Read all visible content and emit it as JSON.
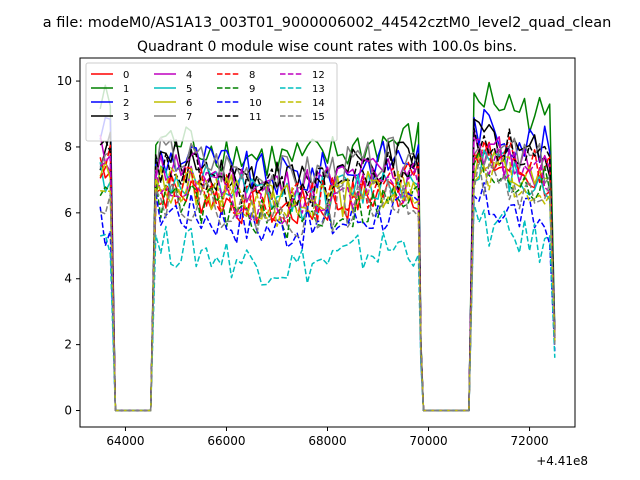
{
  "figure": {
    "suptitle": "a file: modeM0/AS1A13_003T01_9000006002_44542cztM0_level2_quad_clean",
    "offset_label": "+4.41e8"
  },
  "chart_data": {
    "type": "line",
    "title": "Quadrant 0 module wise count rates with 100.0s bins.",
    "xlabel": "",
    "ylabel": "",
    "x_offset": 441000000,
    "xlim": [
      63100,
      72900
    ],
    "ylim": [
      -0.5,
      10.7
    ],
    "xticks": [
      64000,
      66000,
      68000,
      70000,
      72000
    ],
    "xtick_labels": [
      "64000",
      "66000",
      "68000",
      "70000",
      "72000"
    ],
    "yticks": [
      0,
      2,
      4,
      6,
      8,
      10
    ],
    "ytick_labels": [
      "0",
      "2",
      "4",
      "6",
      "8",
      "10"
    ],
    "grid": false,
    "legend": {
      "placement": "top-left",
      "columns": 4
    },
    "segments": [
      {
        "start": 63500,
        "end": 63700
      },
      {
        "start": 64600,
        "end": 69800
      },
      {
        "start": 70900,
        "end": 72500
      }
    ],
    "gaps": [
      {
        "start": 63800,
        "end": 64500,
        "value": 0
      },
      {
        "start": 69900,
        "end": 70800,
        "value": 0
      }
    ],
    "series": [
      {
        "name": "0",
        "color": "#ff0000",
        "dash": "solid",
        "seg_means": [
          7.6,
          6.4,
          7.3
        ],
        "ends": [
          1.9,
          2.2
        ]
      },
      {
        "name": "1",
        "color": "#008000",
        "dash": "solid",
        "seg_means": [
          9.3,
          7.9,
          9.2
        ],
        "ends": [
          2.1,
          2.4
        ]
      },
      {
        "name": "2",
        "color": "#0000ff",
        "dash": "solid",
        "seg_means": [
          8.6,
          7.4,
          8.3
        ],
        "ends": [
          2.0,
          2.3
        ]
      },
      {
        "name": "3",
        "color": "#000000",
        "dash": "solid",
        "seg_means": [
          7.9,
          7.3,
          8.1
        ],
        "ends": [
          2.0,
          2.3
        ]
      },
      {
        "name": "4",
        "color": "#bf00bf",
        "dash": "solid",
        "seg_means": [
          7.8,
          7.1,
          7.6
        ],
        "ends": [
          1.9,
          2.2
        ]
      },
      {
        "name": "5",
        "color": "#00bfbf",
        "dash": "solid",
        "seg_means": [
          7.2,
          6.7,
          7.2
        ],
        "ends": [
          1.8,
          2.1
        ]
      },
      {
        "name": "6",
        "color": "#bfbf00",
        "dash": "solid",
        "seg_means": [
          7.0,
          6.6,
          7.1
        ],
        "ends": [
          1.8,
          2.1
        ]
      },
      {
        "name": "7",
        "color": "#808080",
        "dash": "solid",
        "seg_means": [
          7.5,
          7.4,
          7.7
        ],
        "ends": [
          1.9,
          2.2
        ]
      },
      {
        "name": "8",
        "color": "#ff0000",
        "dash": "dashed",
        "seg_means": [
          7.4,
          6.6,
          7.6
        ],
        "ends": [
          1.8,
          2.1
        ]
      },
      {
        "name": "9",
        "color": "#008000",
        "dash": "dashed",
        "seg_means": [
          7.1,
          6.1,
          7.1
        ],
        "ends": [
          1.8,
          2.1
        ]
      },
      {
        "name": "10",
        "color": "#0000ff",
        "dash": "dashed",
        "seg_means": [
          5.6,
          5.8,
          6.0
        ],
        "ends": [
          1.5,
          1.8
        ]
      },
      {
        "name": "11",
        "color": "#000000",
        "dash": "dashed",
        "seg_means": [
          7.7,
          7.0,
          7.9
        ],
        "ends": [
          1.9,
          2.2
        ]
      },
      {
        "name": "12",
        "color": "#bf00bf",
        "dash": "dashed",
        "seg_means": [
          7.3,
          6.6,
          7.4
        ],
        "ends": [
          1.8,
          2.1
        ]
      },
      {
        "name": "13",
        "color": "#00bfbf",
        "dash": "dashed",
        "seg_means": [
          5.4,
          4.7,
          5.3
        ],
        "ends": [
          1.4,
          1.6
        ]
      },
      {
        "name": "14",
        "color": "#bfbf00",
        "dash": "dashed",
        "seg_means": [
          7.0,
          6.5,
          7.1
        ],
        "ends": [
          1.8,
          2.1
        ]
      },
      {
        "name": "15",
        "color": "#808080",
        "dash": "dashed",
        "seg_means": [
          6.6,
          6.2,
          6.7
        ],
        "ends": [
          1.7,
          2.0
        ]
      }
    ]
  }
}
